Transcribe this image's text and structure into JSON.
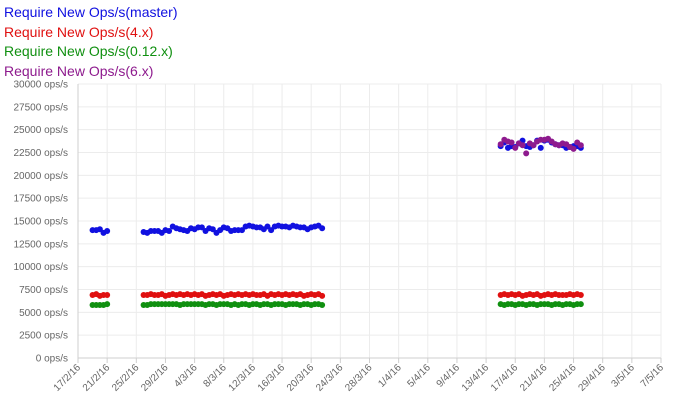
{
  "chart_data": {
    "type": "scatter",
    "legend_position": "top-left",
    "grid": true,
    "ylim": [
      0,
      30000
    ],
    "y_ticks": [
      0,
      2500,
      5000,
      7500,
      10000,
      12500,
      15000,
      17500,
      20000,
      22500,
      25000,
      27500,
      30000
    ],
    "y_tick_labels": [
      "0 ops/s",
      "2500 ops/s",
      "5000 ops/s",
      "7500 ops/s",
      "10000 ops/s",
      "12500 ops/s",
      "15000 ops/s",
      "17500 ops/s",
      "20000 ops/s",
      "22500 ops/s",
      "25000 ops/s",
      "27500 ops/s",
      "30000 ops/s"
    ],
    "x_tick_labels": [
      "17/2/16",
      "21/2/16",
      "25/2/16",
      "29/2/16",
      "4/3/16",
      "8/3/16",
      "12/3/16",
      "16/3/16",
      "20/3/16",
      "24/3/16",
      "28/3/16",
      "1/4/16",
      "5/4/16",
      "9/4/16",
      "13/4/16",
      "17/4/16",
      "21/4/16",
      "25/4/16",
      "29/4/16",
      "3/5/16",
      "7/5/16"
    ],
    "x_range": [
      "2016-02-17",
      "2016-05-07"
    ],
    "series": [
      {
        "name": "Require New Ops/s(master)",
        "color": "#1010e0",
        "segments": [
          {
            "start": "2016-02-19",
            "values": [
              14000,
              14000,
              14100,
              13700,
              13900
            ]
          },
          {
            "start": "2016-02-26",
            "values": [
              13800,
              13700,
              13900,
              13900,
              13900,
              13700,
              14000,
              13900,
              14400,
              14200,
              14100,
              14000,
              13900,
              14200,
              14100,
              14300,
              14300,
              13900,
              14200,
              14100,
              13700,
              14000,
              14300,
              14200,
              13900,
              14000,
              14000,
              14000,
              14400,
              14500,
              14400,
              14300,
              14300,
              14100,
              14400,
              14000,
              14400,
              14500,
              14400,
              14400,
              14300,
              14500,
              14400,
              14300,
              14300,
              14100,
              14300,
              14400,
              14500,
              14200
            ]
          },
          {
            "start": "2016-04-15",
            "values": [
              23200,
              23600,
              23000,
              23200,
              23100,
              23500,
              23800,
              23200,
              23100,
              23300,
              23800,
              23000,
              23800,
              23900,
              23600,
              23400,
              23300,
              23300,
              23000,
              23100,
              23200,
              23200,
              23000
            ]
          }
        ]
      },
      {
        "name": "Require New Ops/s(4.x)",
        "color": "#e01010",
        "segments": [
          {
            "start": "2016-02-19",
            "values": [
              6900,
              7000,
              6800,
              6900,
              6900
            ]
          },
          {
            "start": "2016-02-26",
            "values": [
              6900,
              6900,
              7000,
              6900,
              6900,
              7000,
              6800,
              6900,
              7000,
              6900,
              7000,
              6900,
              7000,
              6900,
              7000,
              6900,
              7000,
              6800,
              6900,
              7000,
              6900,
              7000,
              6800,
              6900,
              7000,
              6900,
              7000,
              6900,
              7000,
              6900,
              7000,
              6900,
              6900,
              7000,
              6800,
              7000,
              6900,
              7000,
              6900,
              7000,
              6900,
              7000,
              6900,
              7000,
              6800,
              6900,
              7000,
              6900,
              7000,
              6800
            ]
          },
          {
            "start": "2016-04-15",
            "values": [
              6900,
              7000,
              6900,
              7000,
              6900,
              7000,
              6800,
              6900,
              7000,
              6900,
              7000,
              6800,
              6900,
              7000,
              6900,
              7000,
              6900,
              6900,
              6900,
              7000,
              6900,
              7000,
              6900
            ]
          }
        ]
      },
      {
        "name": "Require New Ops/s(0.12.x)",
        "color": "#109010",
        "segments": [
          {
            "start": "2016-02-19",
            "values": [
              5800,
              5800,
              5800,
              5800,
              5900
            ]
          },
          {
            "start": "2016-02-26",
            "values": [
              5800,
              5800,
              5900,
              5900,
              5900,
              5900,
              5900,
              5900,
              5900,
              5900,
              5800,
              5900,
              5900,
              5900,
              5900,
              5900,
              5900,
              5800,
              5900,
              5900,
              5800,
              5900,
              5900,
              5900,
              5800,
              5900,
              5800,
              5900,
              5900,
              5800,
              5900,
              5900,
              5800,
              5900,
              5900,
              5800,
              5900,
              5900,
              5900,
              5800,
              5900,
              5900,
              5900,
              5800,
              5900,
              5900,
              5800,
              5900,
              5900,
              5800
            ]
          },
          {
            "start": "2016-04-15",
            "values": [
              5900,
              5800,
              5900,
              5900,
              5800,
              5900,
              5900,
              5800,
              5900,
              5900,
              5800,
              5900,
              5900,
              5900,
              5800,
              5900,
              5900,
              5800,
              5900,
              5900,
              5800,
              5900,
              5900
            ]
          }
        ]
      },
      {
        "name": "Require New Ops/s(6.x)",
        "color": "#8e1a8e",
        "segments": [
          {
            "start": "2016-04-15",
            "values": [
              23400,
              23900,
              23700,
              23600,
              23000,
              23500,
              23300,
              22400,
              23500,
              23300,
              23700,
              23900,
              23900,
              24000,
              23700,
              23400,
              23300,
              23500,
              23400,
              23100,
              22900,
              23600,
              23300
            ]
          }
        ]
      }
    ]
  }
}
